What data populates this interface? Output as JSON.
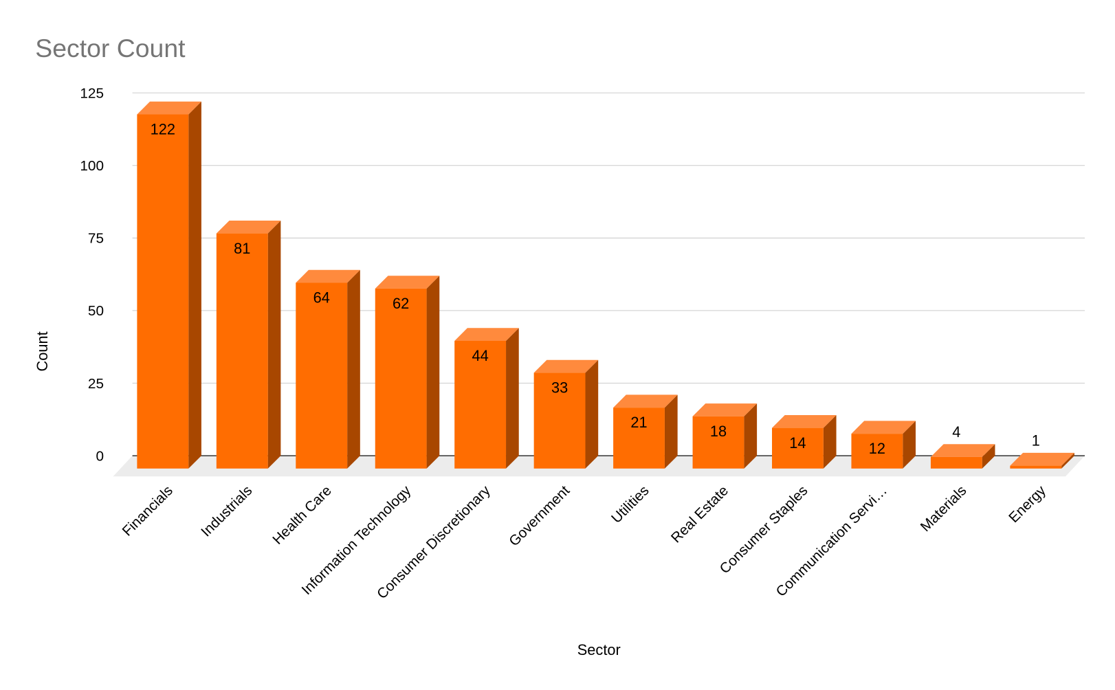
{
  "chart_data": {
    "type": "bar3d",
    "title": "Sector Count",
    "x_label": "Sector",
    "y_label": "Count",
    "categories": [
      "Financials",
      "Industrials",
      "Health Care",
      "Information Technology",
      "Consumer Discretionary",
      "Government",
      "Utilities",
      "Real Estate",
      "Consumer Staples",
      "Communication Servi…",
      "Materials",
      "Energy"
    ],
    "values": [
      122,
      81,
      64,
      62,
      44,
      33,
      21,
      18,
      14,
      12,
      4,
      1
    ],
    "color": "#ff6d01",
    "ylim": [
      0,
      125
    ],
    "yticks": [
      0,
      25,
      50,
      75,
      100,
      125
    ],
    "grid": true
  }
}
